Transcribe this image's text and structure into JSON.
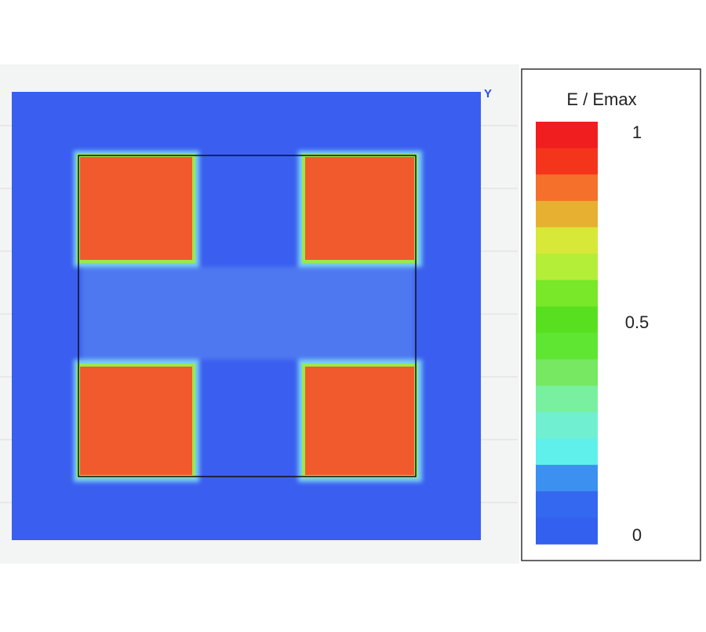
{
  "axis_label": "Y",
  "colorbar": {
    "title": "E / Emax",
    "labels": [
      "1",
      "0.5",
      "0"
    ]
  }
}
